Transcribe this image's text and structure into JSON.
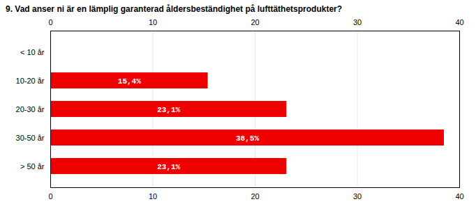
{
  "chart_data": {
    "type": "bar",
    "orientation": "horizontal",
    "title": "9. Vad anser ni är en lämplig garanterad åldersbeständighet på lufttäthetsprodukter?",
    "categories": [
      "< 10 år",
      "10-20 år",
      "20-30 år",
      "30-50 år",
      "> 50 år"
    ],
    "values": [
      0,
      15.4,
      23.1,
      38.5,
      23.1
    ],
    "value_labels": [
      null,
      "15,4%",
      "23,1%",
      "38,5%",
      "23,1%"
    ],
    "data_labels": true,
    "color": "#ee0000",
    "xlim": [
      0,
      40
    ],
    "xticks": [
      0,
      10,
      20,
      30,
      40
    ],
    "grid": true
  }
}
